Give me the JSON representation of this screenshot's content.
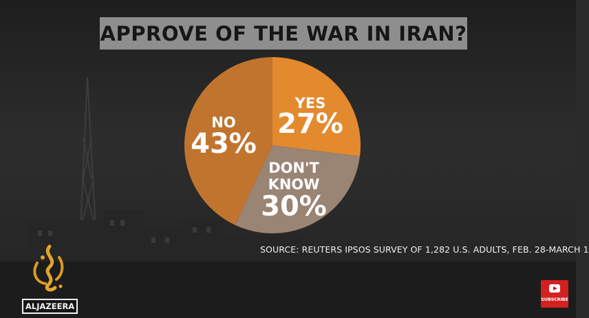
{
  "title": "APPROVE OF THE WAR IN IRAN?",
  "source": "SOURCE: REUTERS IPSOS SURVEY OF 1,282 U.S. ADULTS, FEB. 28-MARCH 1",
  "logo": {
    "wordmark": "ALJAZEERA",
    "emblem": "aljazeera-calligraphy-emblem"
  },
  "subscribe": {
    "label": "SUBSCRIBE",
    "icon": "youtube-play-icon"
  },
  "colors": {
    "yes": "#e48a2e",
    "dont_know": "#9a8474",
    "no": "#c1742e",
    "title_bg": "#8e8e8e",
    "label_text": "#ffffff"
  },
  "chart_data": {
    "type": "pie",
    "title": "APPROVE OF THE WAR IN IRAN?",
    "slices": [
      {
        "label": "YES",
        "value": 27,
        "value_label": "27%"
      },
      {
        "label": "DON'T KNOW",
        "value": 30,
        "value_label": "30%"
      },
      {
        "label": "NO",
        "value": 43,
        "value_label": "43%"
      }
    ],
    "start": "top",
    "direction": "clockwise",
    "legend": "none"
  }
}
